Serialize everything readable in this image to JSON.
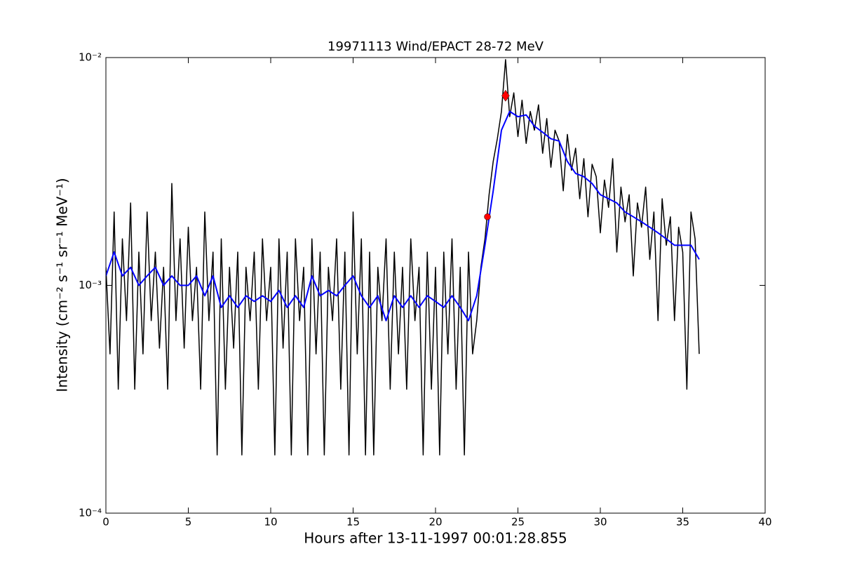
{
  "chart_data": {
    "type": "line",
    "title": "19971113 Wind/EPACT 28-72 MeV",
    "x_label": "Hours after 13-11-1997 00:01:28.855",
    "y_label": "Intensity (cm⁻² s⁻¹ sr⁻¹ MeV⁻¹)",
    "log_y": true,
    "xlim": [
      0,
      40
    ],
    "xticks": [
      0,
      5,
      10,
      15,
      20,
      25,
      30,
      35,
      40
    ],
    "ylim": [
      0.0001,
      0.01
    ],
    "yticks": [
      {
        "value": 0.0001,
        "label": "10⁻⁴"
      },
      {
        "value": 0.001,
        "label": "10⁻³"
      },
      {
        "value": 0.01,
        "label": "10⁻²"
      }
    ],
    "series": [
      {
        "color": "#000000",
        "linewidth": 1.5,
        "x": [
          0,
          0.25,
          0.5,
          0.75,
          1,
          1.25,
          1.5,
          1.75,
          2,
          2.25,
          2.5,
          2.75,
          3,
          3.25,
          3.5,
          3.75,
          4,
          4.25,
          4.5,
          4.75,
          5,
          5.25,
          5.5,
          5.75,
          6,
          6.25,
          6.5,
          6.75,
          7,
          7.25,
          7.5,
          7.75,
          8,
          8.25,
          8.5,
          8.75,
          9,
          9.25,
          9.5,
          9.75,
          10,
          10.25,
          10.5,
          10.75,
          11,
          11.25,
          11.5,
          11.75,
          12,
          12.25,
          12.5,
          12.75,
          13,
          13.25,
          13.5,
          13.75,
          14,
          14.25,
          14.5,
          14.75,
          15,
          15.25,
          15.5,
          15.75,
          16,
          16.25,
          16.5,
          16.75,
          17,
          17.25,
          17.5,
          17.75,
          18,
          18.25,
          18.5,
          18.75,
          19,
          19.25,
          19.5,
          19.75,
          20,
          20.25,
          20.5,
          20.75,
          21,
          21.25,
          21.5,
          21.75,
          22,
          22.25,
          22.5,
          22.75,
          23,
          23.25,
          23.5,
          23.75,
          24,
          24.25,
          24.5,
          24.75,
          25,
          25.25,
          25.5,
          25.75,
          26,
          26.25,
          26.5,
          26.75,
          27,
          27.25,
          27.5,
          27.75,
          28,
          28.25,
          28.5,
          28.75,
          29,
          29.25,
          29.5,
          29.75,
          30,
          30.25,
          30.5,
          30.75,
          31,
          31.25,
          31.5,
          31.75,
          32,
          32.25,
          32.5,
          32.75,
          33,
          33.25,
          33.5,
          33.75,
          34,
          34.25,
          34.5,
          34.75,
          35,
          35.25,
          35.5,
          35.75,
          36
        ],
        "values": [
          0.0012,
          0.0005,
          0.0021,
          0.00035,
          0.0016,
          0.0007,
          0.0023,
          0.00035,
          0.0014,
          0.0005,
          0.0021,
          0.0007,
          0.0014,
          0.00053,
          0.0012,
          0.00035,
          0.0028,
          0.0007,
          0.0016,
          0.00053,
          0.0018,
          0.0007,
          0.0012,
          0.00035,
          0.0021,
          0.0007,
          0.0014,
          0.00018,
          0.0016,
          0.00035,
          0.0012,
          0.00053,
          0.0014,
          0.00018,
          0.0012,
          0.0007,
          0.0014,
          0.00035,
          0.0016,
          0.0007,
          0.0012,
          0.00018,
          0.0016,
          0.00053,
          0.0014,
          0.00018,
          0.0016,
          0.0007,
          0.0012,
          0.00018,
          0.0016,
          0.0005,
          0.0014,
          0.00018,
          0.0012,
          0.0007,
          0.0016,
          0.00035,
          0.0014,
          0.00018,
          0.0021,
          0.0005,
          0.0016,
          0.00018,
          0.0014,
          0.00018,
          0.0012,
          0.0007,
          0.0016,
          0.00035,
          0.0014,
          0.0005,
          0.0012,
          0.00035,
          0.0016,
          0.0007,
          0.0012,
          0.00018,
          0.0014,
          0.00035,
          0.0012,
          0.00018,
          0.0014,
          0.0005,
          0.0016,
          0.00035,
          0.0012,
          0.00018,
          0.0014,
          0.0005,
          0.0007,
          0.0012,
          0.0016,
          0.0025,
          0.0035,
          0.0044,
          0.0058,
          0.0098,
          0.0055,
          0.007,
          0.0045,
          0.0065,
          0.0042,
          0.0058,
          0.0048,
          0.0062,
          0.0038,
          0.0054,
          0.0033,
          0.0048,
          0.0043,
          0.0026,
          0.0046,
          0.0032,
          0.004,
          0.0024,
          0.0036,
          0.002,
          0.0034,
          0.003,
          0.0017,
          0.0029,
          0.0022,
          0.0036,
          0.0014,
          0.0027,
          0.0019,
          0.0025,
          0.0011,
          0.0023,
          0.0018,
          0.0027,
          0.0013,
          0.0021,
          0.0007,
          0.0024,
          0.0015,
          0.002,
          0.0007,
          0.0018,
          0.0014,
          0.00035,
          0.0021,
          0.0016,
          0.0005
        ]
      },
      {
        "color": "#0000ff",
        "linewidth": 2,
        "x": [
          0,
          0.5,
          1,
          1.5,
          2,
          2.5,
          3,
          3.5,
          4,
          4.5,
          5,
          5.5,
          6,
          6.5,
          7,
          7.5,
          8,
          8.5,
          9,
          9.5,
          10,
          10.5,
          11,
          11.5,
          12,
          12.5,
          13,
          13.5,
          14,
          14.5,
          15,
          15.5,
          16,
          16.5,
          17,
          17.5,
          18,
          18.5,
          19,
          19.5,
          20,
          20.5,
          21,
          21.5,
          22,
          22.5,
          23,
          23.5,
          24,
          24.5,
          25,
          25.5,
          26,
          26.5,
          27,
          27.5,
          28,
          28.5,
          29,
          29.5,
          30,
          30.5,
          31,
          31.5,
          32,
          32.5,
          33,
          33.5,
          34,
          34.5,
          35,
          35.5,
          36
        ],
        "values": [
          0.0011,
          0.0014,
          0.0011,
          0.0012,
          0.001,
          0.0011,
          0.0012,
          0.001,
          0.0011,
          0.001,
          0.001,
          0.0011,
          0.0009,
          0.0011,
          0.0008,
          0.0009,
          0.0008,
          0.0009,
          0.00085,
          0.0009,
          0.00085,
          0.00095,
          0.0008,
          0.0009,
          0.0008,
          0.0011,
          0.0009,
          0.00095,
          0.0009,
          0.001,
          0.0011,
          0.0009,
          0.0008,
          0.0009,
          0.0007,
          0.0009,
          0.0008,
          0.0009,
          0.0008,
          0.0009,
          0.00085,
          0.0008,
          0.0009,
          0.0008,
          0.0007,
          0.0009,
          0.0015,
          0.0026,
          0.0048,
          0.0058,
          0.0055,
          0.0056,
          0.005,
          0.0047,
          0.0044,
          0.0043,
          0.0035,
          0.0031,
          0.003,
          0.0028,
          0.0025,
          0.0024,
          0.0023,
          0.0021,
          0.002,
          0.0019,
          0.0018,
          0.0017,
          0.0016,
          0.0015,
          0.0015,
          0.0015,
          0.0013
        ]
      },
      {
        "color": "#ff0000",
        "marker": "circle",
        "x": [
          23.15
        ],
        "values": [
          0.002
        ]
      },
      {
        "color": "#ff0000",
        "marker": "diamond",
        "x": [
          24.25
        ],
        "values": [
          0.0068
        ]
      }
    ]
  }
}
